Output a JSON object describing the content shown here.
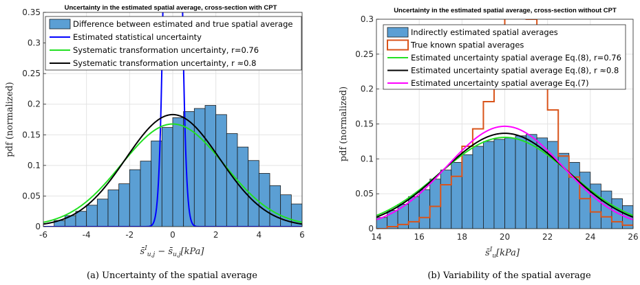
{
  "chart_data": [
    {
      "type": "bar",
      "title": "Uncertainty in the estimated spatial average, cross-section with CPT",
      "ylabel": "pdf (normalized)",
      "xlabel_parts": [
        "s̄",
        "I",
        "u,j",
        " − s̄",
        "u,j",
        "[kPa]"
      ],
      "xlim": [
        -6,
        6
      ],
      "ylim": [
        0,
        0.35
      ],
      "xticks": [
        "-6",
        "-4",
        "-2",
        "0",
        "2",
        "4",
        "6"
      ],
      "yticks": [
        "0",
        "0.05",
        "0.1",
        "0.15",
        "0.2",
        "0.25",
        "0.3",
        "0.35"
      ],
      "grid": true,
      "legend_position": "top",
      "caption": "(a) Uncertainty of the spatial average",
      "histogram": {
        "name": "Difference between estimated and true spatial average",
        "color": "#5b9fd4",
        "bin_width": 0.5,
        "bin_start": -5.5,
        "values": [
          0.01,
          0.018,
          0.025,
          0.035,
          0.045,
          0.06,
          0.07,
          0.093,
          0.107,
          0.14,
          0.162,
          0.178,
          0.188,
          0.193,
          0.198,
          0.183,
          0.152,
          0.13,
          0.108,
          0.087,
          0.067,
          0.052,
          0.037,
          0.025
        ]
      },
      "series": [
        {
          "name": "Estimated statistical uncertainty",
          "color": "#0000ff",
          "kind": "normal",
          "mu": 0,
          "sigma": 0.27
        },
        {
          "name": "Systematic transformation uncertainty, r=0.76",
          "color": "#22e022",
          "kind": "normal",
          "mu": 0,
          "sigma": 2.38
        },
        {
          "name": "Systematic transformation uncertainty, r ≈0.8",
          "color": "#000000",
          "kind": "normal",
          "mu": 0,
          "sigma": 2.18
        }
      ]
    },
    {
      "type": "bar",
      "title": "Uncertainty in the estimated spatial average, cross-section without CPT",
      "ylabel": "pdf (normalized)",
      "xlabel_parts": [
        "s̄",
        "I",
        "u",
        "",
        "",
        "[kPa]"
      ],
      "xlim": [
        14,
        26
      ],
      "ylim": [
        0,
        0.3
      ],
      "xticks": [
        "14",
        "16",
        "18",
        "20",
        "22",
        "24",
        "26"
      ],
      "yticks": [
        "0",
        "0.05",
        "0.1",
        "0.15",
        "0.2",
        "0.25",
        "0.3"
      ],
      "grid": true,
      "legend_position": "top",
      "caption": "(b) Variability of the spatial average",
      "histogram": {
        "name": "Indirectly estimated spatial averages",
        "color": "#5b9fd4",
        "bin_width": 0.5,
        "bin_start": 14,
        "values": [
          0.016,
          0.026,
          0.035,
          0.046,
          0.056,
          0.071,
          0.084,
          0.095,
          0.106,
          0.118,
          0.125,
          0.128,
          0.13,
          0.133,
          0.135,
          0.13,
          0.125,
          0.108,
          0.095,
          0.081,
          0.064,
          0.054,
          0.043,
          0.033
        ]
      },
      "step": {
        "name": "True known spatial averages",
        "color": "#d95319",
        "bin_width": 0.5,
        "bin_start": 14,
        "values": [
          0,
          0.003,
          0.006,
          0.01,
          0.016,
          0.032,
          0.063,
          0.075,
          0.118,
          0.143,
          0.182,
          0.26,
          0.35,
          0.35,
          0.3,
          0.26,
          0.17,
          0.104,
          0.074,
          0.043,
          0.024,
          0.017,
          0.01,
          0.005
        ]
      },
      "series": [
        {
          "name": "Estimated uncertainty spatial average Eq.(8), r=0.76",
          "color": "#22e022",
          "kind": "normal",
          "mu": 20,
          "sigma": 3.05
        },
        {
          "name": "Estimated uncertainty spatial average Eq.(8), r ≈0.8",
          "color": "#000000",
          "kind": "normal",
          "mu": 20,
          "sigma": 2.92
        },
        {
          "name": "Estimated uncertainty spatial average Eq.(7)",
          "color": "#ff00ff",
          "kind": "normal",
          "mu": 20,
          "sigma": 2.72
        }
      ]
    }
  ]
}
